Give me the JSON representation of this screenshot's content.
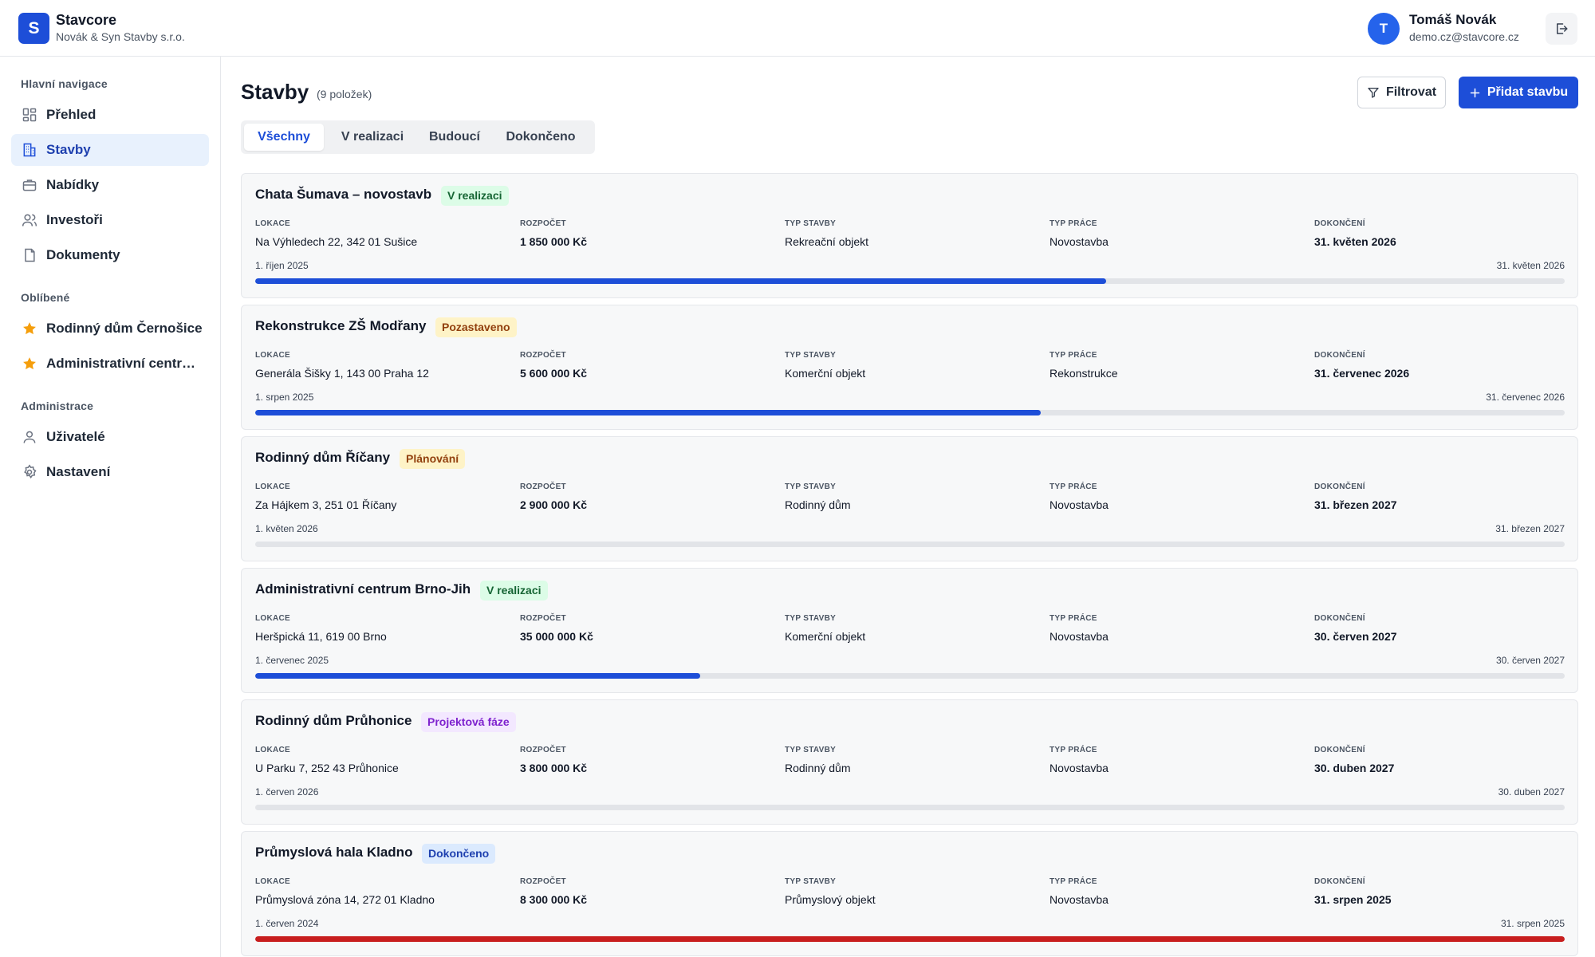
{
  "app": {
    "logo_letter": "S",
    "name": "Stavcore",
    "company": "Novák & Syn Stavby s.r.o."
  },
  "user": {
    "initial": "T",
    "name": "Tomáš Novák",
    "email": "demo.cz@stavcore.cz"
  },
  "sidebar": {
    "sections": [
      {
        "title": "Hlavní navigace",
        "items": [
          {
            "label": "Přehled",
            "icon": "dashboard-icon"
          },
          {
            "label": "Stavby",
            "icon": "building-icon",
            "active": true
          },
          {
            "label": "Nabídky",
            "icon": "briefcase-icon"
          },
          {
            "label": "Investoři",
            "icon": "users-icon"
          },
          {
            "label": "Dokumenty",
            "icon": "document-icon"
          }
        ]
      },
      {
        "title": "Oblíbené",
        "items": [
          {
            "label": "Rodinný dům Černošice",
            "icon": "star-icon"
          },
          {
            "label": "Administrativní centrum Brno-Jih",
            "icon": "star-icon"
          }
        ]
      },
      {
        "title": "Administrace",
        "items": [
          {
            "label": "Uživatelé",
            "icon": "user-icon"
          },
          {
            "label": "Nastavení",
            "icon": "gear-icon"
          }
        ]
      }
    ]
  },
  "main": {
    "title": "Stavby",
    "count": "(9 položek)",
    "filter_label": "Filtrovat",
    "add_label": "Přidat stavbu",
    "tabs": [
      {
        "label": "Všechny",
        "active": true
      },
      {
        "label": "V realizaci"
      },
      {
        "label": "Budoucí"
      },
      {
        "label": "Dokončeno"
      }
    ],
    "field_labels": {
      "location": "LOKACE",
      "budget": "ROZPOČET",
      "building_type": "TYP STAVBY",
      "work_type": "TYP PRÁCE",
      "completion": "DOKONČENÍ"
    },
    "projects": [
      {
        "name": "Chata Šumava – novostavb",
        "status": "V realizaci",
        "status_color": "green",
        "location": "Na Výhledech 22, 342 01 Sušice",
        "budget": "1 850 000 Kč",
        "building_type": "Rekreační objekt",
        "work_type": "Novostavba",
        "completion": "31. květen 2026",
        "start_date": "1. říjen 2025",
        "end_date": "31. květen 2026",
        "progress": 0.65,
        "progress_color": "#1d4ed8"
      },
      {
        "name": "Rekonstrukce ZŠ Modřany",
        "status": "Pozastaveno",
        "status_color": "yellow",
        "location": "Generála Šišky 1, 143 00 Praha 12",
        "budget": "5 600 000 Kč",
        "building_type": "Komerční objekt",
        "work_type": "Rekonstrukce",
        "completion": "31. červenec 2026",
        "start_date": "1. srpen 2025",
        "end_date": "31. červenec 2026",
        "progress": 0.6,
        "progress_color": "#1d4ed8"
      },
      {
        "name": "Rodinný dům Říčany",
        "status": "Plánování",
        "status_color": "yellow",
        "location": "Za Hájkem 3, 251 01 Říčany",
        "budget": "2 900 000 Kč",
        "building_type": "Rodinný dům",
        "work_type": "Novostavba",
        "completion": "31. březen 2027",
        "start_date": "1. květen 2026",
        "end_date": "31. březen 2027",
        "progress": 0,
        "progress_color": "#1d4ed8"
      },
      {
        "name": "Administrativní centrum Brno-Jih",
        "status": "V realizaci",
        "status_color": "green",
        "location": "Heršpická 11, 619 00 Brno",
        "budget": "35 000 000 Kč",
        "building_type": "Komerční objekt",
        "work_type": "Novostavba",
        "completion": "30. červen 2027",
        "start_date": "1. červenec 2025",
        "end_date": "30. červen 2027",
        "progress": 0.34,
        "progress_color": "#1d4ed8"
      },
      {
        "name": "Rodinný dům Průhonice",
        "status": "Projektová fáze",
        "status_color": "purple",
        "location": "U Parku 7, 252 43 Průhonice",
        "budget": "3 800 000 Kč",
        "building_type": "Rodinný dům",
        "work_type": "Novostavba",
        "completion": "30. duben 2027",
        "start_date": "1. červen 2026",
        "end_date": "30. duben 2027",
        "progress": 0,
        "progress_color": "#1d4ed8"
      },
      {
        "name": "Průmyslová hala Kladno",
        "status": "Dokončeno",
        "status_color": "blue",
        "location": "Průmyslová zóna 14, 272 01 Kladno",
        "budget": "8 300 000 Kč",
        "building_type": "Průmyslový objekt",
        "work_type": "Novostavba",
        "completion": "31. srpen 2025",
        "start_date": "1. červen 2024",
        "end_date": "31. srpen 2025",
        "progress": 1,
        "progress_color": "#c81e1e"
      }
    ]
  }
}
